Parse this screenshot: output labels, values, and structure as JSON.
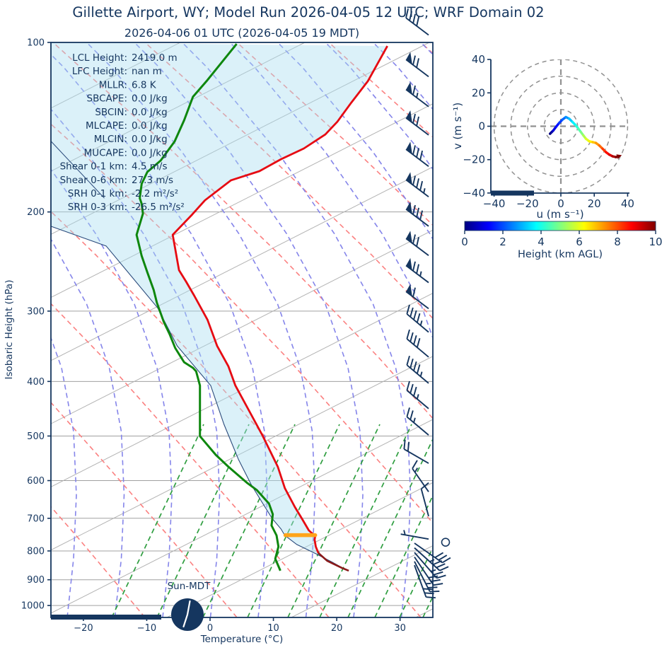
{
  "title": "Gillette  Airport, WY; Model Run 2026-04-05 12 UTC; WRF Domain 02",
  "subtitle": "2026-04-06 01 UTC  (2026-04-05 19 MDT)",
  "colors": {
    "navy": "#15365f",
    "temperature": "#e60b13",
    "temperature_surface": "#8b1a1a",
    "dewpoint": "#0e870e",
    "parcel": "#2a4a7b",
    "cape_shade": "#aadef0",
    "lcl_marker": "#ffa41b",
    "isotherm": "#b3b3b3",
    "pressure_grid": "#a0a0a0",
    "dry_adiabat": "#fb8181",
    "moist_adiabat": "#8585ea",
    "mixing_ratio": "#2f9e40",
    "hodo_grid": "#919191"
  },
  "skewt": {
    "ylabel": "Isobaric Height (hPa)",
    "xlabel": "Temperature (°C)",
    "x_ticks": [
      -20,
      -10,
      0,
      10,
      20,
      30
    ],
    "y_ticks": [
      100,
      200,
      300,
      400,
      500,
      600,
      700,
      800,
      900,
      1000
    ],
    "sun_clock_label": "Sun-MDT",
    "stats": [
      {
        "label": "LCL Height:",
        "value": "2419.0 m"
      },
      {
        "label": "LFC Height:",
        "value": "nan m"
      },
      {
        "label": "MLLR:",
        "value": "6.8 K"
      },
      {
        "label": "SBCAPE:",
        "value": "0.0 J/kg"
      },
      {
        "label": "SBCIN:",
        "value": "0.0 J/kg"
      },
      {
        "label": "MLCAPE:",
        "value": "0.0 J/kg"
      },
      {
        "label": "MLCIN:",
        "value": "0.0 J/kg"
      },
      {
        "label": "MUCAPE:",
        "value": "0.0 J/kg"
      },
      {
        "label": "Shear 0-1 km:",
        "value": "4.5 m/s"
      },
      {
        "label": "Shear 0-6 km:",
        "value": "27.3 m/s"
      },
      {
        "label": "SRH 0-1 km:",
        "value": "-2.2 m²/s²"
      },
      {
        "label": "SRH 0-3 km:",
        "value": "-26.5 m²/s²"
      }
    ]
  },
  "hodograph": {
    "xlabel": "u (m s⁻¹)",
    "ylabel": "v (m s⁻¹)",
    "x_ticks": [
      -40,
      -20,
      0,
      20,
      40
    ],
    "y_ticks": [
      -40,
      -20,
      0,
      20,
      40
    ],
    "ring_radii": [
      10,
      20,
      30,
      40
    ]
  },
  "colorbar": {
    "label": "Height (km AGL)",
    "ticks": [
      0,
      2,
      4,
      6,
      8,
      10
    ],
    "min": 0,
    "max": 10
  },
  "chart_data": {
    "type": "skewt-sounding",
    "pressure_axis_hPa": {
      "top": 100,
      "bottom": 1050,
      "scale": "log"
    },
    "skew_x_axis_C": {
      "min": -25,
      "max": 35,
      "note": "x values are skewed display coordinates as read on the bottom temperature axis"
    },
    "temperature_profile": [
      [
        101.5,
        28.0
      ],
      [
        117.2,
        24.9
      ],
      [
        127.9,
        22.3
      ],
      [
        138.3,
        20.1
      ],
      [
        145.7,
        18.2
      ],
      [
        154.3,
        14.8
      ],
      [
        161.2,
        11.2
      ],
      [
        169.3,
        7.8
      ],
      [
        175.7,
        3.3
      ],
      [
        190.7,
        -0.8
      ],
      [
        202.0,
        -2.8
      ],
      [
        219.6,
        -5.9
      ],
      [
        253.8,
        -4.9
      ],
      [
        265.8,
        -3.8
      ],
      [
        281.6,
        -2.5
      ],
      [
        310.9,
        -0.4
      ],
      [
        345.7,
        1.1
      ],
      [
        376.2,
        2.9
      ],
      [
        406.7,
        4.0
      ],
      [
        453.9,
        6.3
      ],
      [
        499.3,
        8.3
      ],
      [
        567.0,
        10.7
      ],
      [
        618.7,
        11.8
      ],
      [
        668.7,
        13.4
      ],
      [
        700.5,
        14.5
      ],
      [
        735.6,
        15.6
      ],
      [
        752.8,
        16.6
      ],
      [
        763.8,
        16.5
      ],
      [
        786.1,
        16.7
      ],
      [
        806.8,
        17.1
      ]
    ],
    "temperature_surface_segment": [
      [
        806.8,
        17.1
      ],
      [
        833.0,
        18.5
      ],
      [
        857.4,
        20.8
      ],
      [
        867.4,
        21.9
      ]
    ],
    "dewpoint_profile": [
      [
        100.6,
        4.2
      ],
      [
        116.6,
        -0.4
      ],
      [
        124.9,
        -2.7
      ],
      [
        137.5,
        -4.1
      ],
      [
        149.9,
        -5.6
      ],
      [
        162.1,
        -7.8
      ],
      [
        169.8,
        -9.9
      ],
      [
        178.3,
        -10.8
      ],
      [
        189.0,
        -11.1
      ],
      [
        193.4,
        -10.8
      ],
      [
        201.4,
        -10.6
      ],
      [
        219.6,
        -11.6
      ],
      [
        239.4,
        -10.8
      ],
      [
        256.0,
        -9.9
      ],
      [
        275.2,
        -8.9
      ],
      [
        289.9,
        -8.4
      ],
      [
        313.6,
        -7.3
      ],
      [
        329.4,
        -6.4
      ],
      [
        348.8,
        -5.5
      ],
      [
        369.7,
        -4.1
      ],
      [
        378.4,
        -2.7
      ],
      [
        383.8,
        -2.2
      ],
      [
        406.7,
        -1.6
      ],
      [
        450.0,
        -1.6
      ],
      [
        500.4,
        -1.6
      ],
      [
        540.0,
        0.9
      ],
      [
        567.0,
        2.9
      ],
      [
        606.2,
        5.9
      ],
      [
        624.0,
        7.4
      ],
      [
        659.2,
        9.3
      ],
      [
        688.5,
        9.9
      ],
      [
        720.9,
        9.7
      ],
      [
        750.7,
        10.5
      ],
      [
        786.1,
        10.8
      ],
      [
        825.8,
        10.3
      ],
      [
        867.4,
        11.1
      ]
    ],
    "parcel_profile": [
      [
        212.1,
        -25.1
      ],
      [
        229.9,
        -16.4
      ],
      [
        295.8,
        -8.3
      ],
      [
        345.7,
        -5.2
      ],
      [
        406.7,
        0.1
      ],
      [
        476.8,
        2.2
      ],
      [
        550.8,
        4.5
      ],
      [
        610.0,
        6.5
      ],
      [
        655.4,
        8.2
      ],
      [
        700.5,
        9.8
      ],
      [
        731.3,
        11.2
      ],
      [
        750.7,
        11.8
      ],
      [
        779.3,
        13.7
      ],
      [
        809.1,
        16.7
      ],
      [
        837.8,
        19.3
      ],
      [
        864.9,
        21.5
      ]
    ],
    "parcel_upper_segment": [
      [
        149.0,
        -25.3
      ],
      [
        189.0,
        -16.7
      ]
    ],
    "lcl_marker": {
      "pressure": 750,
      "x_from": 11.9,
      "x_to": 16.6
    },
    "shading": "CIN region shaded between parcel_profile and temperature_profile",
    "wind_barbs": [
      {
        "p": 97,
        "dir": 143,
        "pen": 0,
        "full": 4,
        "half": 0
      },
      {
        "p": 115,
        "dir": 143,
        "pen": 1,
        "full": 2,
        "half": 0
      },
      {
        "p": 130,
        "dir": 143,
        "pen": 1,
        "full": 1,
        "half": 1
      },
      {
        "p": 146,
        "dir": 143,
        "pen": 1,
        "full": 2,
        "half": 0
      },
      {
        "p": 166,
        "dir": 143,
        "pen": 1,
        "full": 3,
        "half": 0
      },
      {
        "p": 188,
        "dir": 143,
        "pen": 1,
        "full": 3,
        "half": 1
      },
      {
        "p": 212,
        "dir": 143,
        "pen": 1,
        "full": 3,
        "half": 0
      },
      {
        "p": 239,
        "dir": 143,
        "pen": 1,
        "full": 2,
        "half": 0
      },
      {
        "p": 267,
        "dir": 143,
        "pen": 1,
        "full": 2,
        "half": 1
      },
      {
        "p": 297,
        "dir": 143,
        "pen": 1,
        "full": 1,
        "half": 0
      },
      {
        "p": 327,
        "dir": 140,
        "pen": 0,
        "full": 4,
        "half": 1
      },
      {
        "p": 362,
        "dir": 140,
        "pen": 0,
        "full": 4,
        "half": 0
      },
      {
        "p": 403,
        "dir": 140,
        "pen": 0,
        "full": 4,
        "half": 1
      },
      {
        "p": 447,
        "dir": 140,
        "pen": 0,
        "full": 3,
        "half": 1
      },
      {
        "p": 498,
        "dir": 140,
        "pen": 0,
        "full": 2,
        "half": 1
      },
      {
        "p": 559,
        "dir": 150,
        "pen": 0,
        "full": 2,
        "half": 0
      },
      {
        "p": 628,
        "dir": 125,
        "pen": 0,
        "full": 1,
        "half": 1
      },
      {
        "p": 694,
        "dir": 105,
        "pen": 0,
        "full": 1,
        "half": 0
      },
      {
        "p": 762,
        "dir": 170,
        "pen": 0,
        "full": 0,
        "half": 1
      },
      {
        "p": 775,
        "dir": -35,
        "pen": 0,
        "full": 3,
        "half": 0,
        "x": 586
      },
      {
        "p": 790,
        "dir": -42,
        "pen": 0,
        "full": 3,
        "half": 1,
        "x": 586
      },
      {
        "p": 805,
        "dir": -49,
        "pen": 0,
        "full": 2,
        "half": 1,
        "x": 586
      },
      {
        "p": 820,
        "dir": -56,
        "pen": 0,
        "full": 3,
        "half": 0,
        "x": 586
      },
      {
        "p": 835,
        "dir": -63,
        "pen": 0,
        "full": 2,
        "half": 1,
        "x": 586
      },
      {
        "p": 848,
        "dir": -70,
        "pen": 0,
        "full": 3,
        "half": 0,
        "x": 586
      }
    ],
    "surface_station_circle": {
      "p": 772,
      "x": 630
    },
    "hodograph_trace": {
      "u": [
        -6.5,
        -5.5,
        -4.5,
        -3,
        -1,
        1,
        3,
        5,
        7,
        9,
        10.5,
        12,
        13.5,
        15,
        17,
        19,
        21,
        23,
        25,
        27,
        29,
        31,
        33,
        34.5
      ],
      "v": [
        -4.5,
        -3.5,
        -2.5,
        -0.5,
        2,
        4,
        5.5,
        4.5,
        2.5,
        0.5,
        -1.5,
        -3.5,
        -5.5,
        -7.5,
        -9,
        -9.5,
        -10,
        -11.5,
        -13.5,
        -15.5,
        -17,
        -18,
        -18.5,
        -18
      ],
      "height_km_range": [
        0,
        10
      ]
    }
  }
}
